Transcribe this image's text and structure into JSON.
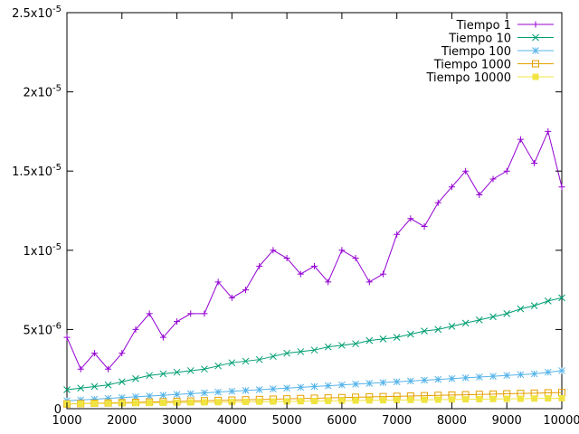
{
  "chart_data": {
    "type": "line",
    "title": "",
    "xlabel": "",
    "ylabel": "",
    "xlim": [
      1000,
      10000
    ],
    "ylim": [
      0,
      2.5e-05
    ],
    "grid": false,
    "legend_position": "top-right",
    "x_ticks": [
      {
        "value": 1000,
        "label": "1000"
      },
      {
        "value": 2000,
        "label": "2000"
      },
      {
        "value": 3000,
        "label": "3000"
      },
      {
        "value": 4000,
        "label": "4000"
      },
      {
        "value": 5000,
        "label": "5000"
      },
      {
        "value": 6000,
        "label": "6000"
      },
      {
        "value": 7000,
        "label": "7000"
      },
      {
        "value": 8000,
        "label": "8000"
      },
      {
        "value": 9000,
        "label": "9000"
      },
      {
        "value": 10000,
        "label": "10000"
      }
    ],
    "y_ticks": [
      {
        "value": 0,
        "base": "0",
        "exp": ""
      },
      {
        "value": 5e-06,
        "base": "5x10",
        "exp": "-6"
      },
      {
        "value": 1e-05,
        "base": "1x10",
        "exp": "-5"
      },
      {
        "value": 1.5e-05,
        "base": "1.5x10",
        "exp": "-5"
      },
      {
        "value": 2e-05,
        "base": "2x10",
        "exp": "-5"
      },
      {
        "value": 2.5e-05,
        "base": "2.5x10",
        "exp": "-5"
      }
    ],
    "series": [
      {
        "name": "Tiempo 1",
        "color": "#9400d3",
        "marker": "plus",
        "x": [
          1000,
          1250,
          1500,
          1750,
          2000,
          2250,
          2500,
          2750,
          3000,
          3250,
          3500,
          3750,
          4000,
          4250,
          4500,
          4750,
          5000,
          5250,
          5500,
          5750,
          6000,
          6250,
          6500,
          6750,
          7000,
          7250,
          7500,
          7750,
          8000,
          8250,
          8500,
          8750,
          9000,
          9250,
          9500,
          9750,
          10000
        ],
        "values": [
          4.5e-06,
          2.5e-06,
          3.5e-06,
          2.5e-06,
          3.5e-06,
          5e-06,
          6e-06,
          4.5e-06,
          5.5e-06,
          6e-06,
          6e-06,
          8e-06,
          7e-06,
          7.5e-06,
          9e-06,
          1e-05,
          9.5e-06,
          8.5e-06,
          9e-06,
          8e-06,
          1e-05,
          9.5e-06,
          8e-06,
          8.5e-06,
          1.1e-05,
          1.2e-05,
          1.15e-05,
          1.3e-05,
          1.4e-05,
          1.5e-05,
          1.35e-05,
          1.45e-05,
          1.5e-05,
          1.7e-05,
          1.55e-05,
          1.75e-05,
          1.4e-05
        ]
      },
      {
        "name": "Tiempo 10",
        "color": "#009e73",
        "marker": "cross",
        "x": [
          1000,
          1250,
          1500,
          1750,
          2000,
          2250,
          2500,
          2750,
          3000,
          3250,
          3500,
          3750,
          4000,
          4250,
          4500,
          4750,
          5000,
          5250,
          5500,
          5750,
          6000,
          6250,
          6500,
          6750,
          7000,
          7250,
          7500,
          7750,
          8000,
          8250,
          8500,
          8750,
          9000,
          9250,
          9500,
          9750,
          10000
        ],
        "values": [
          1.2e-06,
          1.3e-06,
          1.4e-06,
          1.5e-06,
          1.7e-06,
          1.9e-06,
          2.1e-06,
          2.2e-06,
          2.3e-06,
          2.4e-06,
          2.5e-06,
          2.7e-06,
          2.9e-06,
          3e-06,
          3.1e-06,
          3.3e-06,
          3.5e-06,
          3.6e-06,
          3.7e-06,
          3.9e-06,
          4e-06,
          4.1e-06,
          4.3e-06,
          4.4e-06,
          4.5e-06,
          4.7e-06,
          4.9e-06,
          5e-06,
          5.2e-06,
          5.4e-06,
          5.6e-06,
          5.8e-06,
          6e-06,
          6.3e-06,
          6.5e-06,
          6.8e-06,
          7e-06
        ]
      },
      {
        "name": "Tiempo 100",
        "color": "#56b4e9",
        "marker": "star",
        "x": [
          1000,
          1250,
          1500,
          1750,
          2000,
          2250,
          2500,
          2750,
          3000,
          3250,
          3500,
          3750,
          4000,
          4250,
          4500,
          4750,
          5000,
          5250,
          5500,
          5750,
          6000,
          6250,
          6500,
          6750,
          7000,
          7250,
          7500,
          7750,
          8000,
          8250,
          8500,
          8750,
          9000,
          9250,
          9500,
          9750,
          10000
        ],
        "values": [
          5e-07,
          5.5e-07,
          6e-07,
          6.5e-07,
          7e-07,
          7.5e-07,
          8e-07,
          8.5e-07,
          9e-07,
          9.5e-07,
          1e-06,
          1.05e-06,
          1.1e-06,
          1.15e-06,
          1.2e-06,
          1.25e-06,
          1.3e-06,
          1.35e-06,
          1.4e-06,
          1.45e-06,
          1.5e-06,
          1.55e-06,
          1.6e-06,
          1.65e-06,
          1.7e-06,
          1.75e-06,
          1.8e-06,
          1.85e-06,
          1.9e-06,
          1.95e-06,
          2e-06,
          2.05e-06,
          2.1e-06,
          2.15e-06,
          2.2e-06,
          2.3e-06,
          2.4e-06
        ]
      },
      {
        "name": "Tiempo 1000",
        "color": "#e69f00",
        "marker": "open-square",
        "x": [
          1000,
          1250,
          1500,
          1750,
          2000,
          2250,
          2500,
          2750,
          3000,
          3250,
          3500,
          3750,
          4000,
          4250,
          4500,
          4750,
          5000,
          5250,
          5500,
          5750,
          6000,
          6250,
          6500,
          6750,
          7000,
          7250,
          7500,
          7750,
          8000,
          8250,
          8500,
          8750,
          9000,
          9250,
          9500,
          9750,
          10000
        ],
        "values": [
          3e-07,
          3.2e-07,
          3.4e-07,
          3.6e-07,
          3.8e-07,
          4e-07,
          4.2e-07,
          4.4e-07,
          4.6e-07,
          4.8e-07,
          5e-07,
          5.2e-07,
          5.4e-07,
          5.6e-07,
          5.8e-07,
          6e-07,
          6.2e-07,
          6.4e-07,
          6.6e-07,
          6.8e-07,
          7e-07,
          7.2e-07,
          7.4e-07,
          7.6e-07,
          7.8e-07,
          8e-07,
          8.2e-07,
          8.4e-07,
          8.6e-07,
          8.8e-07,
          9e-07,
          9.2e-07,
          9.4e-07,
          9.6e-07,
          9.8e-07,
          1e-06,
          1.02e-06
        ]
      },
      {
        "name": "Tiempo 10000",
        "color": "#f0e442",
        "marker": "filled-square",
        "x": [
          1000,
          1250,
          1500,
          1750,
          2000,
          2250,
          2500,
          2750,
          3000,
          3250,
          3500,
          3750,
          4000,
          4250,
          4500,
          4750,
          5000,
          5250,
          5500,
          5750,
          6000,
          6250,
          6500,
          6750,
          7000,
          7250,
          7500,
          7750,
          8000,
          8250,
          8500,
          8750,
          9000,
          9250,
          9500,
          9750,
          10000
        ],
        "values": [
          3e-07,
          3.1e-07,
          3.2e-07,
          3.3e-07,
          3.4e-07,
          3.5e-07,
          3.6e-07,
          3.7e-07,
          3.8e-07,
          3.9e-07,
          4e-07,
          4.1e-07,
          4.2e-07,
          4.3e-07,
          4.4e-07,
          4.5e-07,
          4.6e-07,
          4.7e-07,
          4.8e-07,
          4.9e-07,
          5e-07,
          5.1e-07,
          5.2e-07,
          5.3e-07,
          5.4e-07,
          5.5e-07,
          5.6e-07,
          5.7e-07,
          5.8e-07,
          5.9e-07,
          6e-07,
          6.1e-07,
          6.2e-07,
          6.3e-07,
          6.4e-07,
          6.5e-07,
          6.6e-07
        ]
      }
    ]
  }
}
